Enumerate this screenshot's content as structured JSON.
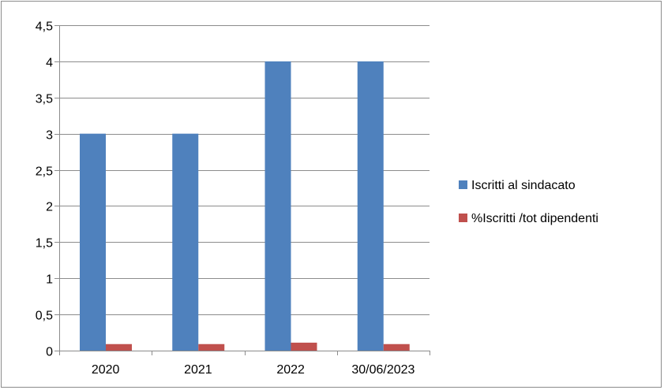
{
  "chart_data": {
    "type": "bar",
    "categories": [
      "2020",
      "2021",
      "2022",
      "30/06/2023"
    ],
    "series": [
      {
        "name": "Iscritti al sindacato",
        "values": [
          3,
          3,
          4,
          4
        ],
        "color": "#4f81bd"
      },
      {
        "name": "%Iscritti /tot dipendenti",
        "values": [
          0.09,
          0.09,
          0.11,
          0.09
        ],
        "color": "#c0504d"
      }
    ],
    "ylim": [
      0,
      4.5
    ],
    "yticks": [
      "0",
      "0,5",
      "1",
      "1,5",
      "2",
      "2,5",
      "3",
      "3,5",
      "4",
      "4,5"
    ],
    "ytick_step": 0.5,
    "grid": true,
    "legend_position": "right"
  }
}
